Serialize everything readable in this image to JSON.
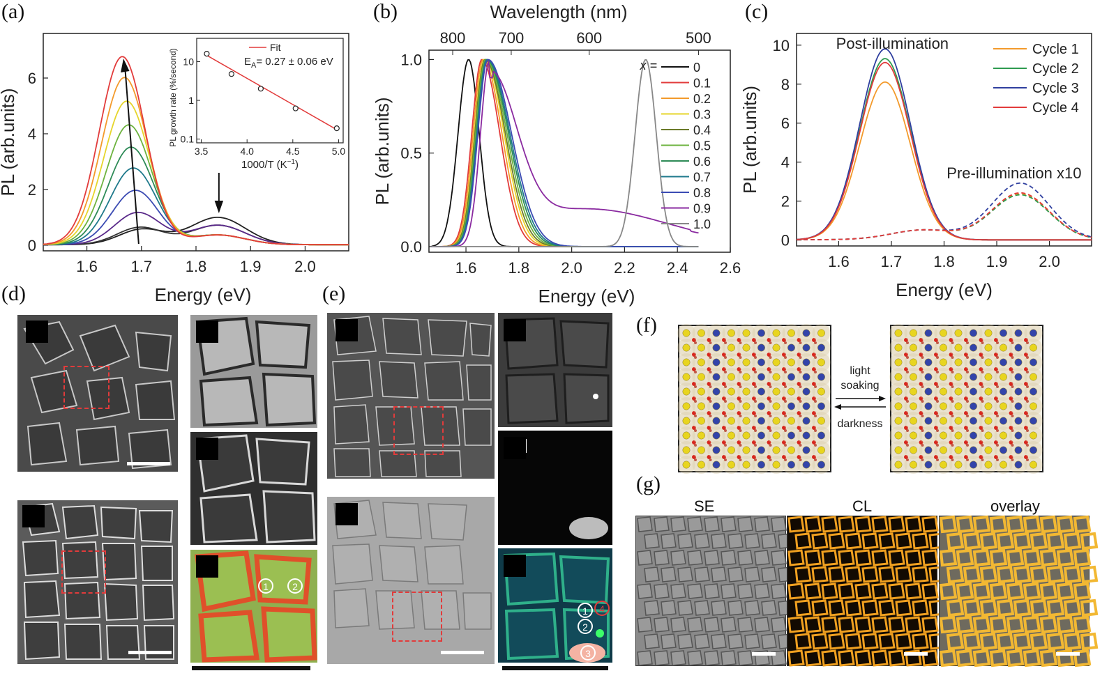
{
  "panels": {
    "a": {
      "letter": "(a)"
    },
    "b": {
      "letter": "(b)"
    },
    "c": {
      "letter": "(c)"
    },
    "d": {
      "letter": "(d)"
    },
    "e": {
      "letter": "(e)"
    },
    "f": {
      "letter": "(f)"
    },
    "g": {
      "letter": "(g)"
    }
  },
  "chart_data": [
    {
      "type": "line",
      "panel": "a",
      "xlabel": "Energy (eV)",
      "ylabel": "PL (arb.units)",
      "xlim": [
        1.52,
        2.08
      ],
      "ylim": [
        -0.2,
        7.6
      ],
      "xticks": [
        "1.6",
        "1.7",
        "1.8",
        "1.9",
        "2.0"
      ],
      "yticks": [
        "0",
        "2",
        "4",
        "6"
      ],
      "series_colors": [
        "#222222",
        "#333333",
        "#5a2a8a",
        "#3b4bb3",
        "#1f7a8c",
        "#2e8b57",
        "#6db33f",
        "#e6d52b",
        "#f39a2b",
        "#e23b3b"
      ],
      "peak_heights": [
        0.55,
        0.62,
        1.15,
        1.95,
        2.75,
        3.5,
        4.3,
        5.15,
        6.0,
        6.75
      ],
      "inset": {
        "xlabel": "1000/T (K",
        "xlabel_sup": "−1",
        "xlabel_end": ")",
        "ylabel": "PL growth rate (%/second)",
        "xticks": [
          "3.5",
          "4.0",
          "4.5",
          "5.0"
        ],
        "yticks": [
          "0.1",
          "1",
          "10"
        ],
        "legend": "Fit",
        "annotation": "E",
        "annotation_sub": "A",
        "annotation_rest": "= 0.27 ± 0.06  eV",
        "x": [
          3.56,
          3.83,
          4.15,
          4.53,
          4.98
        ],
        "y": [
          16,
          4.8,
          2.0,
          0.62,
          0.19
        ]
      }
    },
    {
      "type": "line",
      "panel": "b",
      "xlabel": "Energy (eV)",
      "ylabel": "PL (arb.units)",
      "top_xlabel": "Wavelength (nm)",
      "top_xticks": [
        "800",
        "700",
        "600",
        "500"
      ],
      "xlim": [
        1.46,
        2.6
      ],
      "ylim": [
        -0.03,
        1.05
      ],
      "xticks": [
        "1.6",
        "1.8",
        "2.0",
        "2.2",
        "2.4",
        "2.6"
      ],
      "yticks": [
        "0.0",
        "0.5",
        "1.0"
      ],
      "legend_title": "x =",
      "legend": [
        "0",
        "0.1",
        "0.2",
        "0.3",
        "0.4",
        "0.5",
        "0.6",
        "0.7",
        "0.8",
        "0.9",
        "1.0"
      ],
      "colors": [
        "#111111",
        "#e23b3b",
        "#f39a2b",
        "#e6d52b",
        "#6b7a2a",
        "#6db33f",
        "#2e8b57",
        "#1f7a8c",
        "#3b4bb3",
        "#8a2aa0",
        "#888888"
      ],
      "peaks": [
        1.61,
        1.66,
        1.665,
        1.67,
        1.672,
        1.675,
        1.678,
        1.68,
        1.683,
        1.69,
        2.28
      ]
    },
    {
      "type": "line",
      "panel": "c",
      "xlabel": "Energy (eV)",
      "ylabel": "PL (arb.units)",
      "xlim": [
        1.52,
        2.08
      ],
      "ylim": [
        -0.3,
        10.6
      ],
      "xticks": [
        "1.6",
        "1.7",
        "1.8",
        "1.9",
        "2.0"
      ],
      "yticks": [
        "0",
        "2",
        "4",
        "6",
        "8",
        "10"
      ],
      "annotation_post": "Post-illumination",
      "annotation_pre": "Pre-illumination x10",
      "legend": [
        "Cycle 1",
        "Cycle 2",
        "Cycle 3",
        "Cycle 4"
      ],
      "colors": [
        "#f39a2b",
        "#2e9b4f",
        "#2f3f9f",
        "#e23b3b"
      ],
      "post_peaks": [
        8.1,
        9.3,
        9.8,
        9.1
      ],
      "pre_peaks": [
        2.35,
        2.3,
        2.9,
        2.4
      ]
    }
  ],
  "f": {
    "label_top": "light",
    "label_top2": "soaking",
    "label_bottom": "darkness"
  },
  "g": {
    "labels": [
      "SE",
      "CL",
      "overlay"
    ]
  },
  "d_circles": [
    "1",
    "2"
  ],
  "e_circles": [
    "1",
    "2",
    "3",
    "4"
  ],
  "colors": {
    "accent_red": "#e23b3b",
    "yellow": "#e8d51f",
    "blue": "#3344aa"
  }
}
